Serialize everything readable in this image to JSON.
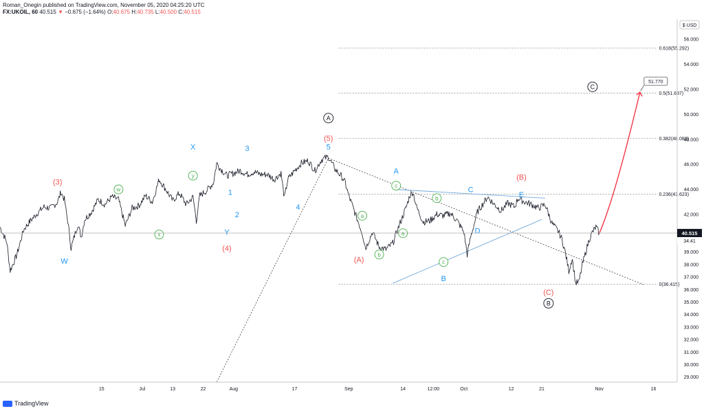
{
  "header": {
    "publisher": "Roman_Onegin published on TradingView.com, November 05, 2020 04:25:20 UTC",
    "symbol": "FX:UKOIL, 60",
    "last": "40.515",
    "change_arrow": "▼",
    "change": "−0.675 (−1.64%)",
    "o_label": "O:",
    "o_value": "40.675",
    "h_label": "H:",
    "h_value": "40.735",
    "l_label": "L:",
    "l_value": "40.500",
    "c_label": "C:",
    "c_value": "40.515"
  },
  "brand": {
    "name": "TradingView",
    "icon": "tradingview-logo-icon"
  },
  "colors": {
    "price": "#131722",
    "blue_wave": "#2196f3",
    "red_wave": "#ef5350",
    "green_wave": "#4caf50",
    "arrow": "#f23645",
    "trendline": "#6fa8dc"
  },
  "chart_data": {
    "type": "line",
    "symbol": "FX:UKOIL",
    "interval": "60",
    "currency": "USD",
    "ylim": [
      28.6,
      57.6
    ],
    "y_ticks": [
      "56.000",
      "54.000",
      "52.000",
      "50.000",
      "48.000",
      "46.000",
      "44.000",
      "42.000",
      "40.000",
      "39.000",
      "38.000",
      "37.000",
      "36.000",
      "35.000",
      "34.000",
      "33.000",
      "32.000",
      "31.000",
      "30.000",
      "29.000"
    ],
    "y_tick_values": [
      56,
      54,
      52,
      50,
      48,
      46,
      44,
      42,
      40,
      39,
      38,
      37,
      36,
      35,
      34,
      33,
      32,
      31,
      30,
      29
    ],
    "x_ticks": [
      "15",
      "Jul",
      "13",
      "22",
      "Aug",
      "17",
      "Sep",
      "14",
      "12:00",
      "Oct",
      "12",
      "21",
      "Nov",
      "16"
    ],
    "x_tick_positions": [
      15,
      27,
      36,
      45,
      54,
      72,
      88,
      104,
      113,
      122,
      136,
      145,
      162,
      178
    ],
    "x_range": [
      -15,
      185
    ],
    "current_price": "40.515",
    "current_price_value": 40.515,
    "countdown": "34:41",
    "price_path": [
      [
        -15,
        41.0
      ],
      [
        -13,
        39.8
      ],
      [
        -12,
        37.5
      ],
      [
        -10,
        38.8
      ],
      [
        -8,
        40.8
      ],
      [
        -6,
        41.5
      ],
      [
        -4,
        42.1
      ],
      [
        -2,
        42.6
      ],
      [
        0,
        42.5
      ],
      [
        2,
        43.0
      ],
      [
        3,
        43.8
      ],
      [
        4,
        43.2
      ],
      [
        5,
        41.5
      ],
      [
        6,
        39.3
      ],
      [
        7,
        40.3
      ],
      [
        8,
        41.2
      ],
      [
        9,
        40.2
      ],
      [
        10,
        41.6
      ],
      [
        12,
        42.2
      ],
      [
        14,
        43.2
      ],
      [
        16,
        42.8
      ],
      [
        18,
        43.4
      ],
      [
        20,
        43.2
      ],
      [
        22,
        41.1
      ],
      [
        24,
        42.5
      ],
      [
        26,
        42.7
      ],
      [
        28,
        43.5
      ],
      [
        30,
        43.0
      ],
      [
        32,
        44.8
      ],
      [
        34,
        44.0
      ],
      [
        36,
        43.1
      ],
      [
        38,
        43.7
      ],
      [
        40,
        42.8
      ],
      [
        42,
        43.4
      ],
      [
        43,
        41.5
      ],
      [
        44,
        43.5
      ],
      [
        46,
        43.9
      ],
      [
        48,
        44.5
      ],
      [
        49,
        46.1
      ],
      [
        50,
        45.7
      ],
      [
        52,
        45.1
      ],
      [
        54,
        45.3
      ],
      [
        56,
        45.5
      ],
      [
        58,
        45.2
      ],
      [
        60,
        45.4
      ],
      [
        62,
        45.2
      ],
      [
        64,
        45.2
      ],
      [
        66,
        44.8
      ],
      [
        68,
        45.3
      ],
      [
        69,
        43.3
      ],
      [
        70,
        44.8
      ],
      [
        72,
        45.5
      ],
      [
        74,
        46.1
      ],
      [
        76,
        46.3
      ],
      [
        78,
        45.5
      ],
      [
        80,
        46.4
      ],
      [
        82,
        46.6
      ],
      [
        84,
        45.6
      ],
      [
        86,
        45.0
      ],
      [
        87,
        44.5
      ],
      [
        88,
        43.5
      ],
      [
        90,
        42.0
      ],
      [
        92,
        40.5
      ],
      [
        93,
        39.3
      ],
      [
        95,
        40.6
      ],
      [
        97,
        39.4
      ],
      [
        99,
        39.2
      ],
      [
        101,
        39.7
      ],
      [
        103,
        41.2
      ],
      [
        105,
        42.6
      ],
      [
        106,
        43.5
      ],
      [
        107,
        43.8
      ],
      [
        108,
        42.6
      ],
      [
        110,
        41.4
      ],
      [
        112,
        41.5
      ],
      [
        114,
        42.0
      ],
      [
        116,
        41.9
      ],
      [
        118,
        42.1
      ],
      [
        120,
        41.5
      ],
      [
        122,
        40.6
      ],
      [
        123,
        38.8
      ],
      [
        124,
        40.2
      ],
      [
        126,
        42.2
      ],
      [
        128,
        43.0
      ],
      [
        129,
        43.4
      ],
      [
        131,
        42.8
      ],
      [
        133,
        42.3
      ],
      [
        135,
        42.9
      ],
      [
        137,
        42.6
      ],
      [
        138,
        43.3
      ],
      [
        140,
        43.0
      ],
      [
        142,
        42.8
      ],
      [
        144,
        42.5
      ],
      [
        146,
        42.8
      ],
      [
        148,
        41.3
      ],
      [
        150,
        40.6
      ],
      [
        151,
        40.0
      ],
      [
        152,
        38.9
      ],
      [
        153,
        37.5
      ],
      [
        154,
        38.5
      ],
      [
        155,
        36.5
      ],
      [
        156,
        36.6
      ],
      [
        157,
        38.0
      ],
      [
        158,
        39.0
      ],
      [
        159,
        40.0
      ],
      [
        160,
        40.6
      ],
      [
        161,
        41.0
      ],
      [
        162,
        40.5
      ]
    ],
    "projection": {
      "from": [
        162,
        40.5
      ],
      "to": [
        174,
        51.77
      ],
      "label": "51.770"
    },
    "fib_levels": [
      {
        "label": "0.618(55.292)",
        "value": 55.292
      },
      {
        "label": "0.5(51.687)",
        "value": 51.687
      },
      {
        "label": "0.382(48.083)",
        "value": 48.083
      },
      {
        "label": "0.236(43.623)",
        "value": 43.623
      },
      {
        "label": "0(36.415)",
        "value": 36.415
      }
    ],
    "fib_x_range": [
      85,
      179
    ],
    "trendlines": [
      {
        "style": "dashed",
        "color": "#444444",
        "from": [
          49,
          28.6
        ],
        "to": [
          82,
          46.5
        ]
      },
      {
        "style": "dashed",
        "color": "#444444",
        "from": [
          82,
          46.5
        ],
        "to": [
          175,
          36.4
        ]
      },
      {
        "style": "solid",
        "color": "#6fa8dc",
        "from": [
          101,
          36.5
        ],
        "to": [
          145,
          41.6
        ]
      },
      {
        "style": "solid",
        "color": "#6fa8dc",
        "from": [
          102,
          44.0
        ],
        "to": [
          146,
          43.3
        ]
      }
    ],
    "wave_labels": [
      {
        "text": "(3)",
        "x": 2,
        "y": 44.6,
        "color": "red",
        "style": "plain"
      },
      {
        "text": "W",
        "x": 4,
        "y": 38.3,
        "color": "blue",
        "style": "plain"
      },
      {
        "text": "w",
        "x": 20,
        "y": 44.0,
        "color": "green",
        "style": "circle"
      },
      {
        "text": "x",
        "x": 32,
        "y": 40.4,
        "color": "green",
        "style": "circle"
      },
      {
        "text": "y",
        "x": 42,
        "y": 45.1,
        "color": "green",
        "style": "circle"
      },
      {
        "text": "X",
        "x": 42,
        "y": 47.4,
        "color": "blue",
        "style": "plain"
      },
      {
        "text": "1",
        "x": 53,
        "y": 43.8,
        "color": "blue",
        "style": "plain"
      },
      {
        "text": "2",
        "x": 55,
        "y": 42.0,
        "color": "blue",
        "style": "plain"
      },
      {
        "text": "Y",
        "x": 52,
        "y": 40.6,
        "color": "blue",
        "style": "plain"
      },
      {
        "text": "(4)",
        "x": 52,
        "y": 39.3,
        "color": "red",
        "style": "plain"
      },
      {
        "text": "3",
        "x": 58,
        "y": 47.3,
        "color": "blue",
        "style": "plain"
      },
      {
        "text": "4",
        "x": 73,
        "y": 42.6,
        "color": "blue",
        "style": "plain"
      },
      {
        "text": "A",
        "x": 82,
        "y": 49.7,
        "color": "black",
        "style": "circle"
      },
      {
        "text": "(5)",
        "x": 82,
        "y": 48.1,
        "color": "red",
        "style": "plain"
      },
      {
        "text": "5",
        "x": 82,
        "y": 47.4,
        "color": "blue",
        "style": "plain"
      },
      {
        "text": "a",
        "x": 92,
        "y": 41.9,
        "color": "green",
        "style": "circle"
      },
      {
        "text": "(A)",
        "x": 91,
        "y": 38.4,
        "color": "red",
        "style": "plain"
      },
      {
        "text": "b",
        "x": 97,
        "y": 38.8,
        "color": "green",
        "style": "circle"
      },
      {
        "text": "A",
        "x": 102,
        "y": 45.5,
        "color": "blue",
        "style": "plain"
      },
      {
        "text": "c",
        "x": 102,
        "y": 44.3,
        "color": "green",
        "style": "circle"
      },
      {
        "text": "a",
        "x": 104,
        "y": 40.5,
        "color": "green",
        "style": "circle"
      },
      {
        "text": "b",
        "x": 114,
        "y": 43.3,
        "color": "green",
        "style": "circle"
      },
      {
        "text": "c",
        "x": 116,
        "y": 38.2,
        "color": "green",
        "style": "circle"
      },
      {
        "text": "B",
        "x": 116,
        "y": 36.9,
        "color": "blue",
        "style": "plain"
      },
      {
        "text": "C",
        "x": 124,
        "y": 44.0,
        "color": "blue",
        "style": "plain"
      },
      {
        "text": "D",
        "x": 126,
        "y": 40.7,
        "color": "blue",
        "style": "plain"
      },
      {
        "text": "(B)",
        "x": 139,
        "y": 45.0,
        "color": "red",
        "style": "plain"
      },
      {
        "text": "E",
        "x": 139,
        "y": 43.6,
        "color": "blue",
        "style": "plain"
      },
      {
        "text": "(C)",
        "x": 147,
        "y": 35.8,
        "color": "red",
        "style": "plain"
      },
      {
        "text": "B",
        "x": 147,
        "y": 34.9,
        "color": "black",
        "style": "circle"
      },
      {
        "text": "C",
        "x": 160,
        "y": 52.2,
        "color": "black",
        "style": "circle"
      }
    ]
  }
}
